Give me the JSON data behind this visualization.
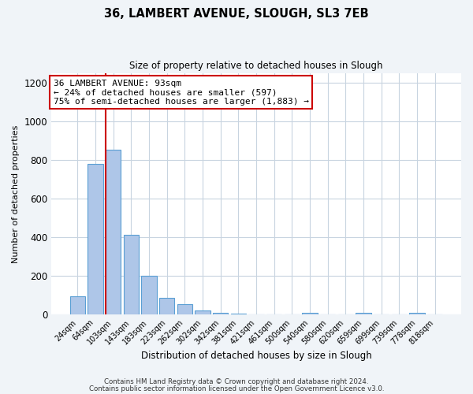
{
  "title1": "36, LAMBERT AVENUE, SLOUGH, SL3 7EB",
  "title2": "Size of property relative to detached houses in Slough",
  "xlabel": "Distribution of detached houses by size in Slough",
  "ylabel": "Number of detached properties",
  "bar_labels": [
    "24sqm",
    "64sqm",
    "103sqm",
    "143sqm",
    "183sqm",
    "223sqm",
    "262sqm",
    "302sqm",
    "342sqm",
    "381sqm",
    "421sqm",
    "461sqm",
    "500sqm",
    "540sqm",
    "580sqm",
    "620sqm",
    "659sqm",
    "699sqm",
    "739sqm",
    "778sqm",
    "818sqm"
  ],
  "bar_values": [
    95,
    780,
    855,
    415,
    200,
    85,
    52,
    22,
    8,
    3,
    2,
    1,
    0,
    8,
    0,
    0,
    8,
    0,
    0,
    8,
    0
  ],
  "bar_color": "#aec6e8",
  "bar_edge_color": "#5a9fd4",
  "vline_color": "#cc0000",
  "annotation_text": "36 LAMBERT AVENUE: 93sqm\n← 24% of detached houses are smaller (597)\n75% of semi-detached houses are larger (1,883) →",
  "annotation_box_color": "#ffffff",
  "annotation_box_edge": "#cc0000",
  "ylim": [
    0,
    1250
  ],
  "yticks": [
    0,
    200,
    400,
    600,
    800,
    1000,
    1200
  ],
  "footer1": "Contains HM Land Registry data © Crown copyright and database right 2024.",
  "footer2": "Contains public sector information licensed under the Open Government Licence v3.0.",
  "bg_color": "#f0f4f8",
  "plot_bg_color": "#ffffff",
  "grid_color": "#c8d4e0"
}
